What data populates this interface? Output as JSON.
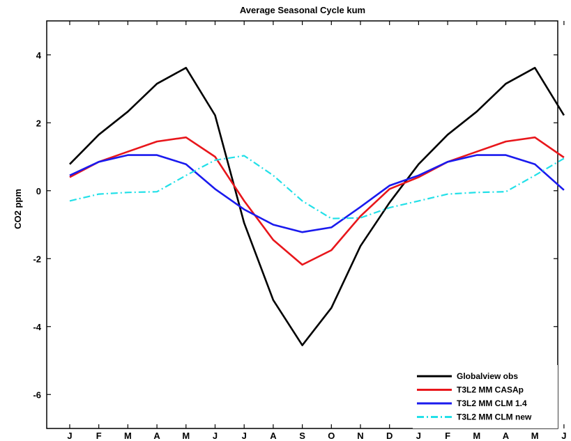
{
  "chart_data": {
    "type": "line",
    "title": "Average Seasonal Cycle kum",
    "xlabel": "",
    "ylabel": "CO2 ppm",
    "categories": [
      "J",
      "F",
      "M",
      "A",
      "M",
      "J",
      "J",
      "A",
      "S",
      "O",
      "N",
      "D",
      "J",
      "F",
      "M",
      "A",
      "M",
      "J"
    ],
    "ylim": [
      -7,
      5
    ],
    "yticks": [
      -6,
      -4,
      -2,
      0,
      2,
      4
    ],
    "grid": false,
    "legend_position": "bottom-right",
    "series": [
      {
        "name": "Globalview obs",
        "color": "#000000",
        "style": "solid",
        "values": [
          0.78,
          1.65,
          2.33,
          3.15,
          3.62,
          2.22,
          -0.95,
          -3.22,
          -4.55,
          -3.45,
          -1.63,
          -0.35,
          0.78,
          1.65,
          2.33,
          3.15,
          3.62,
          2.22
        ]
      },
      {
        "name": "T3L2 MM CASAp",
        "color": "#e8161b",
        "style": "solid",
        "values": [
          0.4,
          0.85,
          1.15,
          1.45,
          1.57,
          1.0,
          -0.3,
          -1.45,
          -2.18,
          -1.75,
          -0.75,
          0.05,
          0.4,
          0.85,
          1.15,
          1.45,
          1.57,
          0.98
        ]
      },
      {
        "name": "T3L2 MM CLM 1.4",
        "color": "#1a1aee",
        "style": "solid",
        "values": [
          0.45,
          0.85,
          1.05,
          1.05,
          0.78,
          0.05,
          -0.55,
          -1.0,
          -1.22,
          -1.08,
          -0.48,
          0.15,
          0.45,
          0.85,
          1.05,
          1.05,
          0.78,
          0.02
        ]
      },
      {
        "name": "T3L2 MM CLM new",
        "color": "#22e0e8",
        "style": "dashdot",
        "values": [
          -0.3,
          -0.1,
          -0.05,
          -0.03,
          0.45,
          0.9,
          1.03,
          0.45,
          -0.3,
          -0.82,
          -0.8,
          -0.5,
          -0.3,
          -0.1,
          -0.05,
          -0.03,
          0.45,
          0.95
        ]
      }
    ]
  }
}
